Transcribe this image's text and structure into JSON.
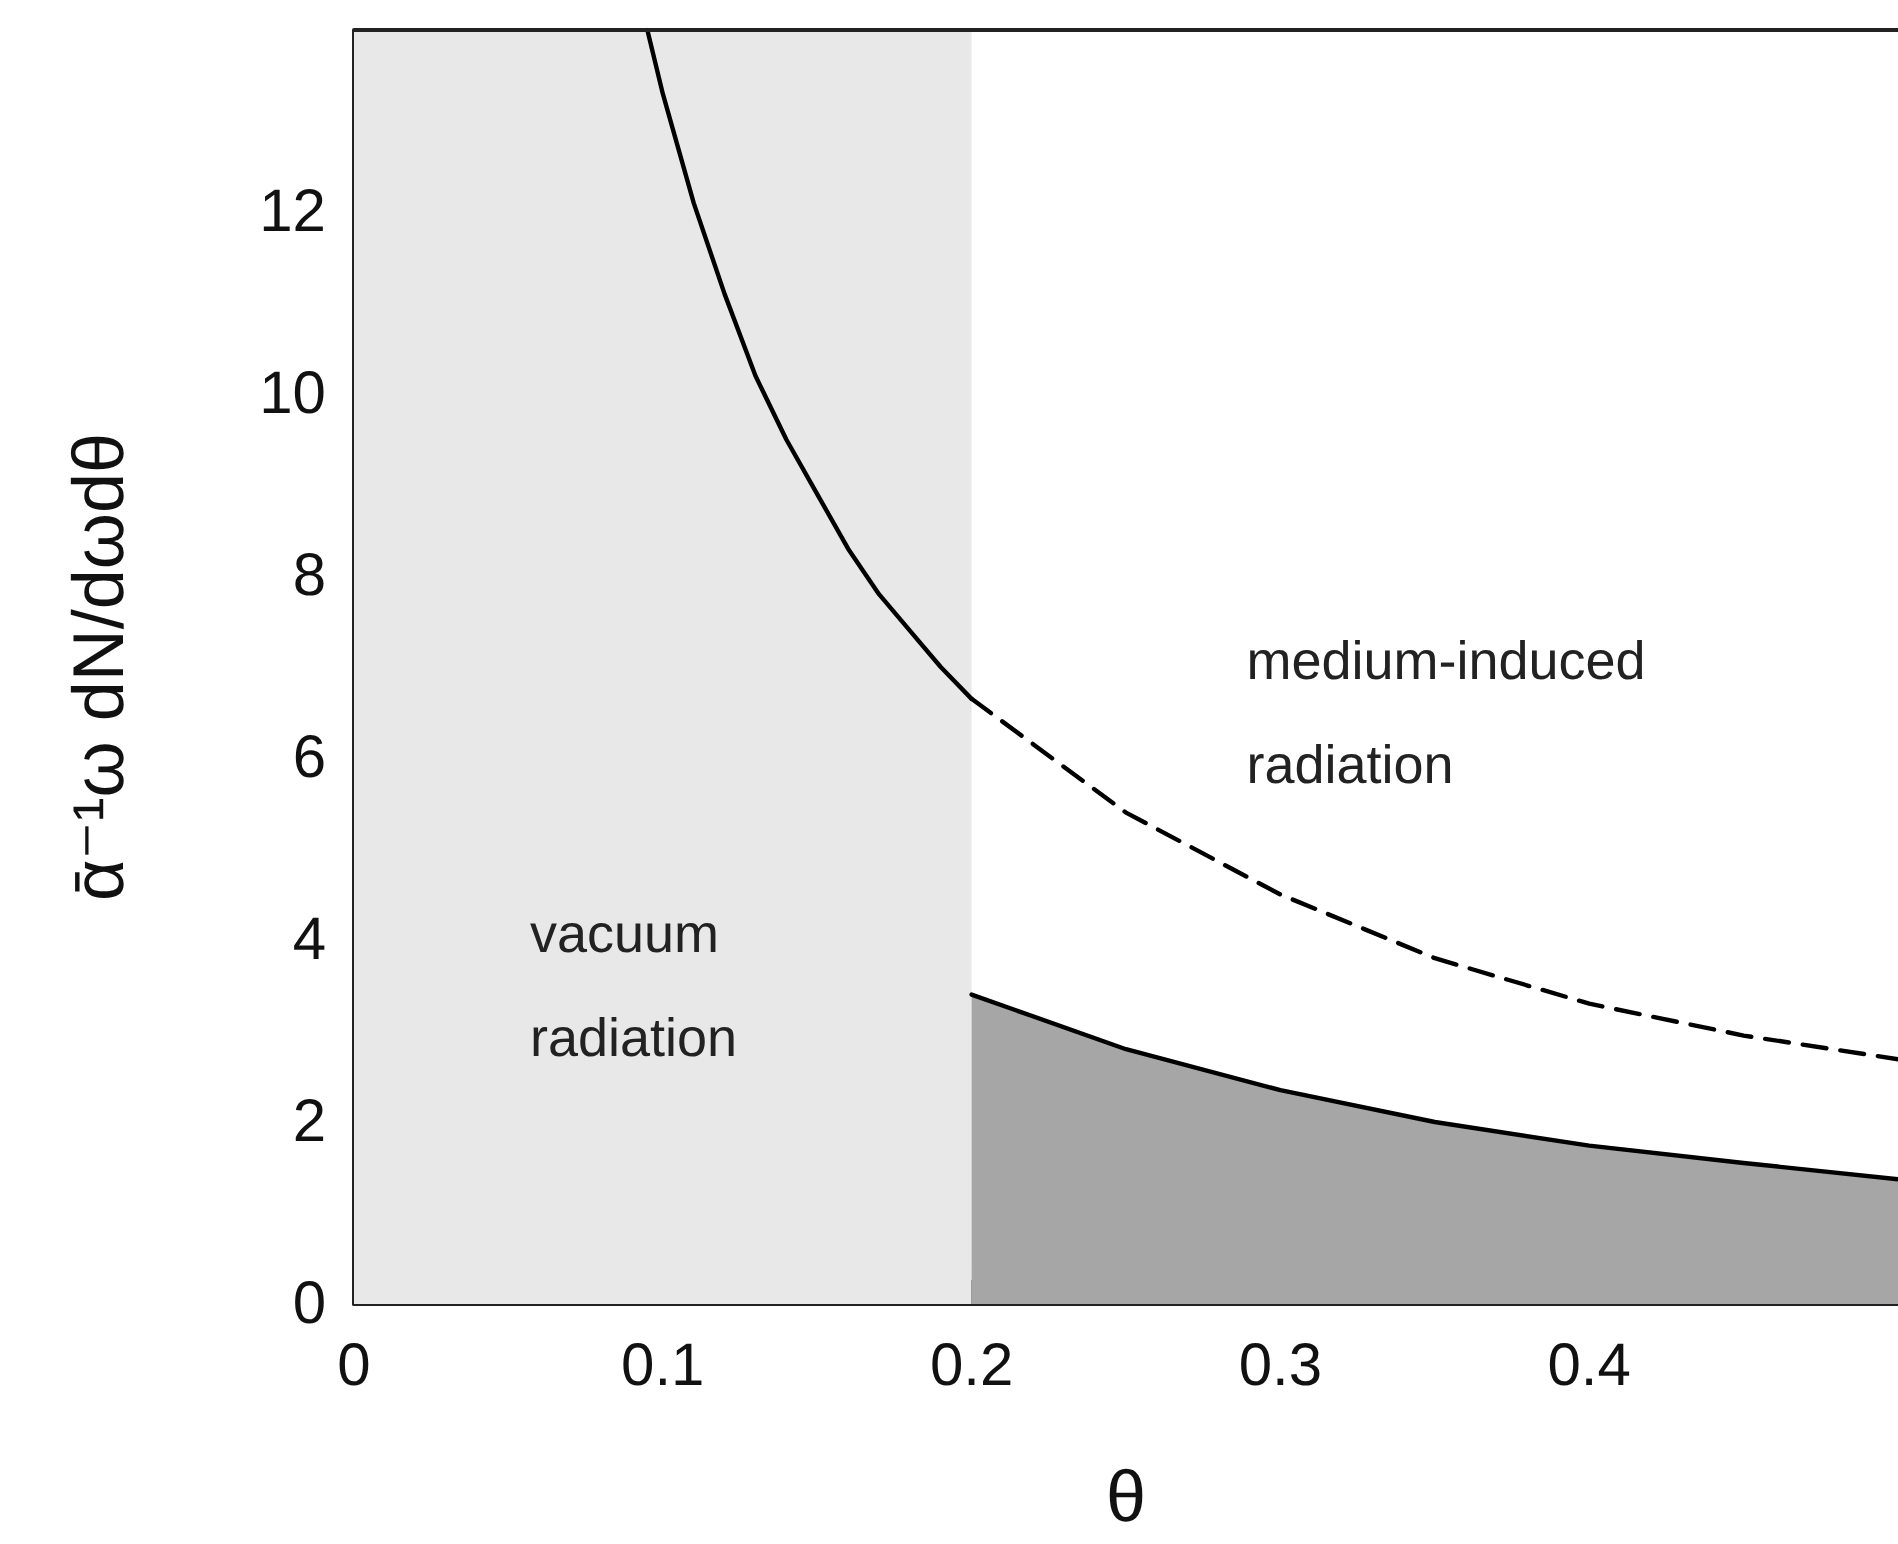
{
  "chart_data": {
    "type": "line",
    "xlabel": "θ",
    "ylabel": "ᾱ⁻¹ω dN/dωdθ",
    "xlim": [
      0,
      0.5
    ],
    "ylim": [
      0,
      14
    ],
    "xticks": [
      0,
      0.1,
      0.2,
      0.3,
      0.4
    ],
    "yticks": [
      0,
      2,
      4,
      6,
      8,
      10,
      12
    ],
    "grid": false,
    "marker": "none",
    "series": [
      {
        "color": "#000000",
        "line_style": "solid",
        "x": [
          0.095,
          0.1,
          0.11,
          0.12,
          0.13,
          0.14,
          0.15,
          0.16,
          0.17,
          0.18,
          0.19,
          0.2
        ],
        "values": [
          14.0,
          13.3,
          12.1,
          11.1,
          10.2,
          9.5,
          8.9,
          8.3,
          7.8,
          7.4,
          7.0,
          6.65
        ]
      },
      {
        "color": "#000000",
        "line_style": "dashed",
        "x": [
          0.2,
          0.25,
          0.3,
          0.35,
          0.4,
          0.45,
          0.5
        ],
        "values": [
          6.65,
          5.4,
          4.5,
          3.8,
          3.3,
          2.95,
          2.69
        ]
      },
      {
        "type": "area",
        "color": "#a6a6a6",
        "line_style": "solid",
        "x": [
          0.2,
          0.25,
          0.3,
          0.35,
          0.4,
          0.45,
          0.5
        ],
        "values": [
          3.4,
          2.8,
          2.35,
          2.0,
          1.74,
          1.55,
          1.37
        ]
      }
    ],
    "bands": [
      {
        "axis": "x",
        "from": 0,
        "to": 0.2,
        "color": "#e8e8e8"
      }
    ],
    "annotations": [
      "vacuum\nradiation",
      "medium-induced\nradiation"
    ]
  }
}
